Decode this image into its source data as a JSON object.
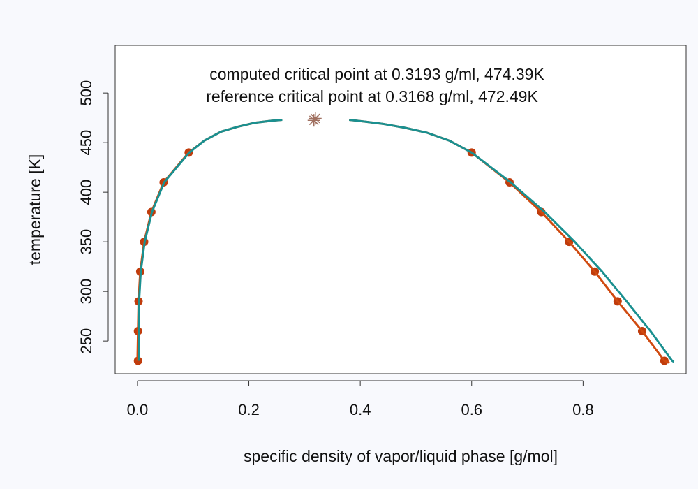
{
  "chart_data": {
    "type": "scatter",
    "xlabel": "specific density of vapor/liquid phase [g/mol]",
    "ylabel": "temperature [K]",
    "xlim": [
      -0.04,
      0.985
    ],
    "ylim": [
      217,
      548
    ],
    "x_ticks": [
      0.0,
      0.2,
      0.4,
      0.6,
      0.8
    ],
    "x_tick_labels": [
      "0.0",
      "0.2",
      "0.4",
      "0.6",
      "0.8"
    ],
    "y_ticks": [
      250,
      300,
      350,
      400,
      450,
      500
    ],
    "y_tick_labels": [
      "250",
      "300",
      "350",
      "400",
      "450",
      "500"
    ],
    "grid": false,
    "annotations": [
      "computed critical point at 0.3193 g/ml, 474.39K",
      "reference critical point at 0.3168 g/ml, 472.49K"
    ],
    "colors": {
      "reference": "#d04a10",
      "computed": "#1a9090",
      "points": "#c03c0c",
      "critical_marker": "#a07060"
    },
    "critical_points": [
      {
        "x": 0.3193,
        "y": 474.39
      },
      {
        "x": 0.3168,
        "y": 472.49
      }
    ],
    "series": [
      {
        "role": "reference-points",
        "style": "points",
        "x": [
          0.001,
          0.001,
          0.002,
          0.005,
          0.012,
          0.025,
          0.047,
          0.092,
          0.946,
          0.906,
          0.862,
          0.821,
          0.775,
          0.725,
          0.668,
          0.6
        ],
        "y": [
          230,
          260,
          290,
          320,
          350,
          380,
          410,
          440,
          230,
          260,
          290,
          320,
          350,
          380,
          410,
          440
        ]
      },
      {
        "role": "reference-curve",
        "style": "line",
        "x": [
          0.0,
          0.001,
          0.002,
          0.005,
          0.012,
          0.025,
          0.047,
          0.092,
          0.12,
          0.15,
          0.18,
          0.21,
          0.24,
          0.26
        ],
        "y": [
          230,
          260,
          290,
          320,
          350,
          380,
          410,
          440,
          452,
          461,
          466,
          470,
          472,
          473
        ]
      },
      {
        "role": "reference-curve",
        "style": "line",
        "x": [
          0.38,
          0.41,
          0.44,
          0.48,
          0.52,
          0.56,
          0.6,
          0.668,
          0.725,
          0.775,
          0.821,
          0.862,
          0.906,
          0.946,
          0.955
        ],
        "y": [
          473,
          471,
          469,
          465,
          460,
          452,
          440,
          410,
          380,
          350,
          320,
          290,
          260,
          230,
          228
        ]
      },
      {
        "role": "computed-curve",
        "style": "line",
        "x": [
          0.002,
          0.002,
          0.003,
          0.006,
          0.013,
          0.026,
          0.048,
          0.093,
          0.12,
          0.15,
          0.18,
          0.21,
          0.24,
          0.26
        ],
        "y": [
          230,
          260,
          290,
          320,
          350,
          380,
          410,
          440,
          452,
          461,
          466,
          470,
          472,
          473
        ]
      },
      {
        "role": "computed-curve",
        "style": "line",
        "x": [
          0.38,
          0.41,
          0.44,
          0.48,
          0.52,
          0.56,
          0.6,
          0.67,
          0.731,
          0.785,
          0.834,
          0.878,
          0.921,
          0.96,
          0.963
        ],
        "y": [
          473,
          471,
          469,
          465,
          460,
          452,
          440,
          410,
          380,
          350,
          320,
          290,
          260,
          230,
          229
        ]
      }
    ]
  }
}
